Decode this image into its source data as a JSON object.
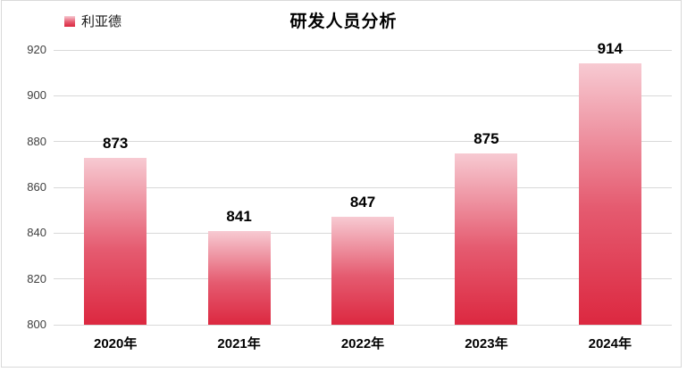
{
  "chart_data": {
    "type": "bar",
    "title": "研发人员分析",
    "legend": {
      "label": "利亚德",
      "position": "top-left"
    },
    "series_name": "利亚德",
    "categories": [
      "2020年",
      "2021年",
      "2022年",
      "2023年",
      "2024年"
    ],
    "values": [
      873,
      841,
      847,
      875,
      914
    ],
    "data_labels": [
      "873",
      "841",
      "847",
      "875",
      "914"
    ],
    "ylim": [
      800,
      920
    ],
    "yticks": [
      800,
      820,
      840,
      860,
      880,
      900,
      920
    ],
    "grid": "horizontal",
    "colors": {
      "bar_top": "#f7cad2",
      "bar_mid": "#e55b70",
      "bar_bottom": "#dc2840",
      "gridline": "#d9d9d9",
      "frame_border": "#d9d9d9",
      "title": "#000000",
      "y_label": "#404040",
      "x_label": "#000000",
      "value_label": "#000000",
      "background": "#ffffff"
    }
  }
}
